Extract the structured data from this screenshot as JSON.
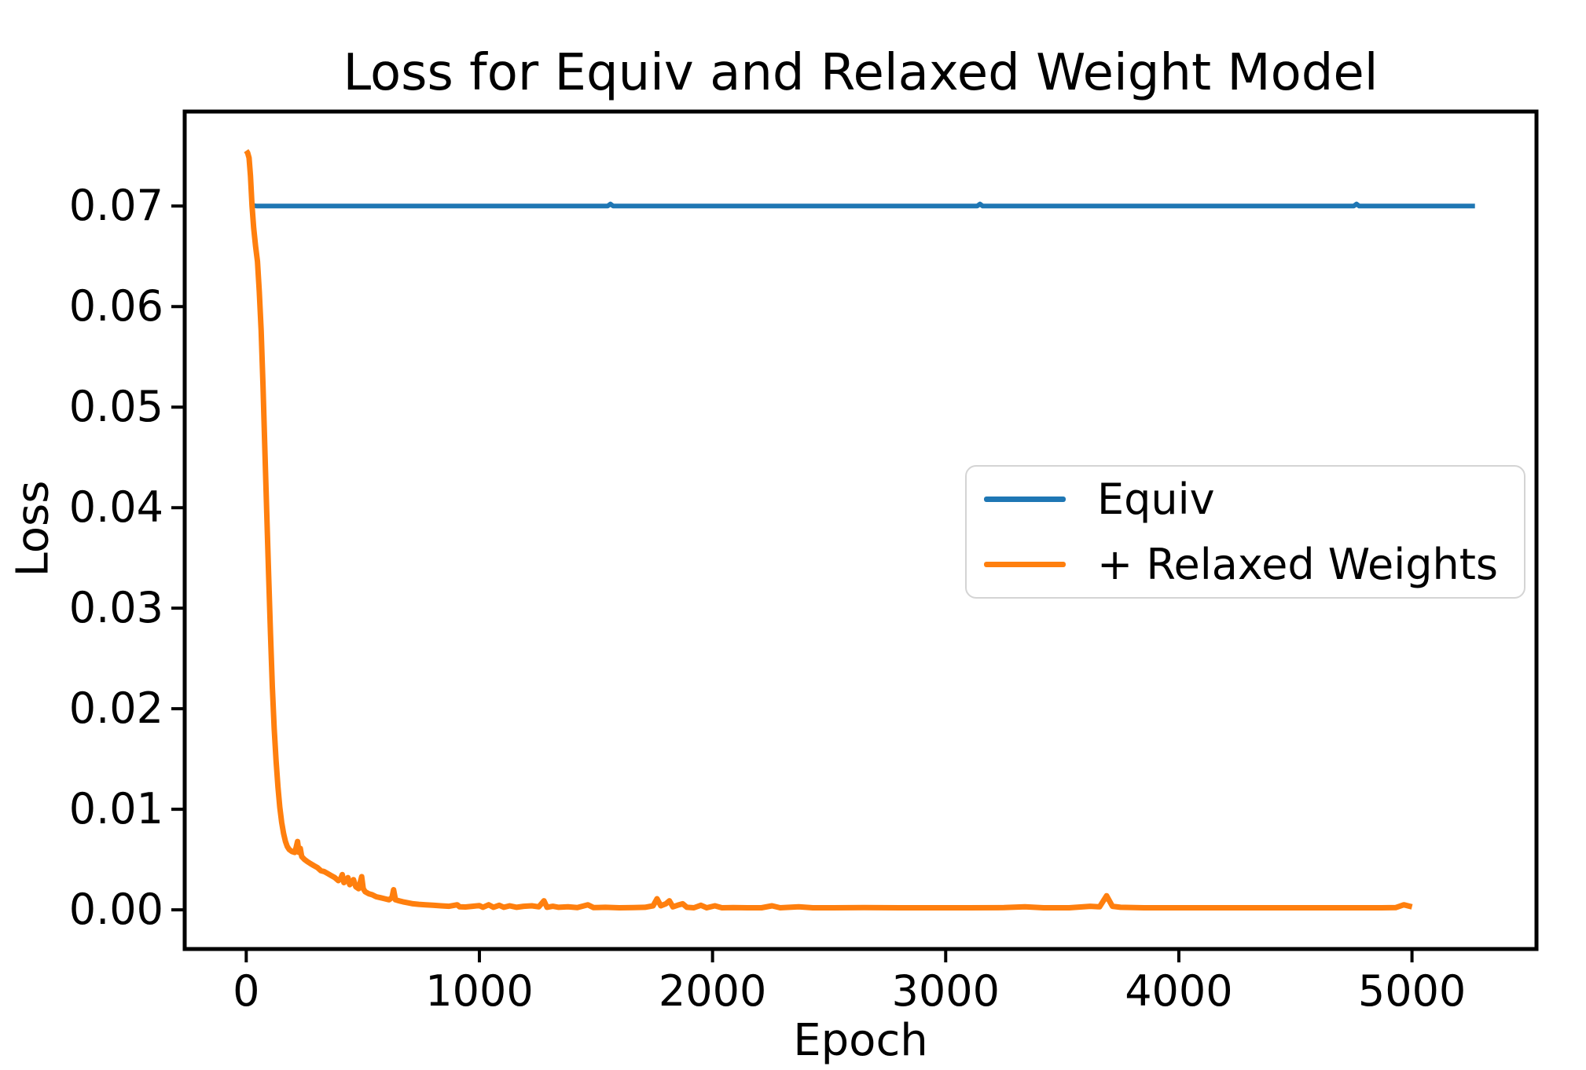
{
  "figure": {
    "background": "#ffffff"
  },
  "chart_data": {
    "type": "line",
    "title": "Loss for Equiv and Relaxed Weight Model",
    "xlabel": "Epoch",
    "ylabel": "Loss",
    "grid": false,
    "xlim": [
      -264,
      5534
    ],
    "ylim": [
      -0.0039,
      0.0794
    ],
    "x_ticks": {
      "values": [
        0,
        1000,
        2000,
        3000,
        4000,
        5000
      ],
      "labels": [
        "0",
        "1000",
        "2000",
        "3000",
        "4000",
        "5000"
      ]
    },
    "y_ticks": {
      "values": [
        0.0,
        0.01,
        0.02,
        0.03,
        0.04,
        0.05,
        0.06,
        0.07
      ],
      "labels": [
        "0.00",
        "0.01",
        "0.02",
        "0.03",
        "0.04",
        "0.05",
        "0.06",
        "0.07"
      ]
    },
    "legend": {
      "position": "center right",
      "entries": [
        {
          "label": "Equiv",
          "color": "#1f77b4"
        },
        {
          "label": "+ Relaxed Weights",
          "color": "#ff7f0e"
        }
      ]
    },
    "series": [
      {
        "name": "Equiv",
        "color": "#1f77b4",
        "line_width": 6,
        "points": [
          [
            0,
            0.0755
          ],
          [
            6,
            0.0753
          ],
          [
            12,
            0.0748
          ],
          [
            18,
            0.073
          ],
          [
            25,
            0.0701
          ],
          [
            32,
            0.07005
          ],
          [
            45,
            0.07
          ],
          [
            500,
            0.07
          ],
          [
            1000,
            0.07
          ],
          [
            1550,
            0.07
          ],
          [
            1562,
            0.0702
          ],
          [
            1574,
            0.07
          ],
          [
            2500,
            0.07
          ],
          [
            3135,
            0.07
          ],
          [
            3147,
            0.0702
          ],
          [
            3159,
            0.07
          ],
          [
            4000,
            0.07
          ],
          [
            4750,
            0.07
          ],
          [
            4762,
            0.0702
          ],
          [
            4774,
            0.07
          ],
          [
            5270,
            0.07
          ]
        ]
      },
      {
        "name": "+ Relaxed Weights",
        "color": "#ff7f0e",
        "line_width": 7,
        "points": [
          [
            0,
            0.0755
          ],
          [
            6,
            0.0753
          ],
          [
            12,
            0.0748
          ],
          [
            18,
            0.073
          ],
          [
            25,
            0.07
          ],
          [
            32,
            0.0678
          ],
          [
            40,
            0.066
          ],
          [
            48,
            0.0645
          ],
          [
            56,
            0.0615
          ],
          [
            64,
            0.0576
          ],
          [
            72,
            0.052
          ],
          [
            80,
            0.0458
          ],
          [
            88,
            0.0395
          ],
          [
            96,
            0.0333
          ],
          [
            104,
            0.0274
          ],
          [
            112,
            0.0222
          ],
          [
            120,
            0.018
          ],
          [
            128,
            0.0148
          ],
          [
            136,
            0.0122
          ],
          [
            144,
            0.0102
          ],
          [
            152,
            0.0087
          ],
          [
            160,
            0.0076
          ],
          [
            168,
            0.0068
          ],
          [
            176,
            0.0063
          ],
          [
            184,
            0.006
          ],
          [
            196,
            0.0058
          ],
          [
            208,
            0.0057
          ],
          [
            214,
            0.0062
          ],
          [
            220,
            0.0068
          ],
          [
            226,
            0.0057
          ],
          [
            232,
            0.0061
          ],
          [
            238,
            0.0053
          ],
          [
            250,
            0.005
          ],
          [
            262,
            0.0048
          ],
          [
            275,
            0.0046
          ],
          [
            290,
            0.0044
          ],
          [
            305,
            0.0042
          ],
          [
            320,
            0.0039
          ],
          [
            335,
            0.0038
          ],
          [
            350,
            0.0036
          ],
          [
            365,
            0.0034
          ],
          [
            380,
            0.0032
          ],
          [
            395,
            0.0029
          ],
          [
            405,
            0.0031
          ],
          [
            412,
            0.0035
          ],
          [
            419,
            0.0027
          ],
          [
            428,
            0.0029
          ],
          [
            436,
            0.0032
          ],
          [
            444,
            0.0025
          ],
          [
            452,
            0.0027
          ],
          [
            460,
            0.003
          ],
          [
            470,
            0.0023
          ],
          [
            482,
            0.0021
          ],
          [
            495,
            0.0033
          ],
          [
            502,
            0.0021
          ],
          [
            510,
            0.0018
          ],
          [
            525,
            0.0016
          ],
          [
            540,
            0.0015
          ],
          [
            558,
            0.0013
          ],
          [
            576,
            0.0012
          ],
          [
            594,
            0.0011
          ],
          [
            612,
            0.001
          ],
          [
            625,
            0.0012
          ],
          [
            632,
            0.002
          ],
          [
            640,
            0.001
          ],
          [
            655,
            0.0009
          ],
          [
            672,
            0.0008
          ],
          [
            692,
            0.0007
          ],
          [
            715,
            0.0006
          ],
          [
            740,
            0.00055
          ],
          [
            770,
            0.0005
          ],
          [
            800,
            0.00045
          ],
          [
            835,
            0.0004
          ],
          [
            870,
            0.00035
          ],
          [
            905,
            0.0005
          ],
          [
            915,
            0.0003
          ],
          [
            940,
            0.00028
          ],
          [
            970,
            0.00035
          ],
          [
            1000,
            0.00042
          ],
          [
            1015,
            0.00025
          ],
          [
            1040,
            0.0005
          ],
          [
            1060,
            0.00025
          ],
          [
            1085,
            0.00045
          ],
          [
            1105,
            0.00025
          ],
          [
            1130,
            0.0004
          ],
          [
            1160,
            0.00025
          ],
          [
            1190,
            0.00035
          ],
          [
            1225,
            0.0004
          ],
          [
            1255,
            0.0003
          ],
          [
            1277,
            0.0009
          ],
          [
            1290,
            0.00025
          ],
          [
            1315,
            0.00035
          ],
          [
            1340,
            0.00025
          ],
          [
            1380,
            0.0003
          ],
          [
            1420,
            0.00022
          ],
          [
            1465,
            0.0005
          ],
          [
            1490,
            0.00022
          ],
          [
            1540,
            0.00025
          ],
          [
            1600,
            0.0002
          ],
          [
            1660,
            0.00022
          ],
          [
            1710,
            0.00025
          ],
          [
            1745,
            0.0004
          ],
          [
            1762,
            0.0011
          ],
          [
            1778,
            0.0004
          ],
          [
            1800,
            0.0006
          ],
          [
            1815,
            0.0009
          ],
          [
            1830,
            0.0003
          ],
          [
            1850,
            0.00045
          ],
          [
            1872,
            0.0006
          ],
          [
            1890,
            0.00025
          ],
          [
            1920,
            0.0002
          ],
          [
            1950,
            0.00045
          ],
          [
            1975,
            0.0002
          ],
          [
            2010,
            0.0004
          ],
          [
            2040,
            0.0002
          ],
          [
            2090,
            0.00022
          ],
          [
            2150,
            0.0002
          ],
          [
            2210,
            0.0002
          ],
          [
            2255,
            0.0004
          ],
          [
            2290,
            0.0002
          ],
          [
            2370,
            0.0003
          ],
          [
            2430,
            0.0002
          ],
          [
            2520,
            0.0002
          ],
          [
            2650,
            0.00022
          ],
          [
            2800,
            0.0002
          ],
          [
            2950,
            0.0002
          ],
          [
            3100,
            0.0002
          ],
          [
            3250,
            0.00022
          ],
          [
            3340,
            0.0003
          ],
          [
            3420,
            0.0002
          ],
          [
            3530,
            0.0002
          ],
          [
            3620,
            0.00035
          ],
          [
            3660,
            0.0003
          ],
          [
            3690,
            0.0014
          ],
          [
            3715,
            0.00035
          ],
          [
            3750,
            0.00025
          ],
          [
            3850,
            0.0002
          ],
          [
            4000,
            0.0002
          ],
          [
            4150,
            0.0002
          ],
          [
            4300,
            0.0002
          ],
          [
            4450,
            0.0002
          ],
          [
            4600,
            0.0002
          ],
          [
            4750,
            0.0002
          ],
          [
            4870,
            0.0002
          ],
          [
            4930,
            0.00022
          ],
          [
            4965,
            0.0005
          ],
          [
            5000,
            0.0003
          ]
        ]
      }
    ]
  }
}
